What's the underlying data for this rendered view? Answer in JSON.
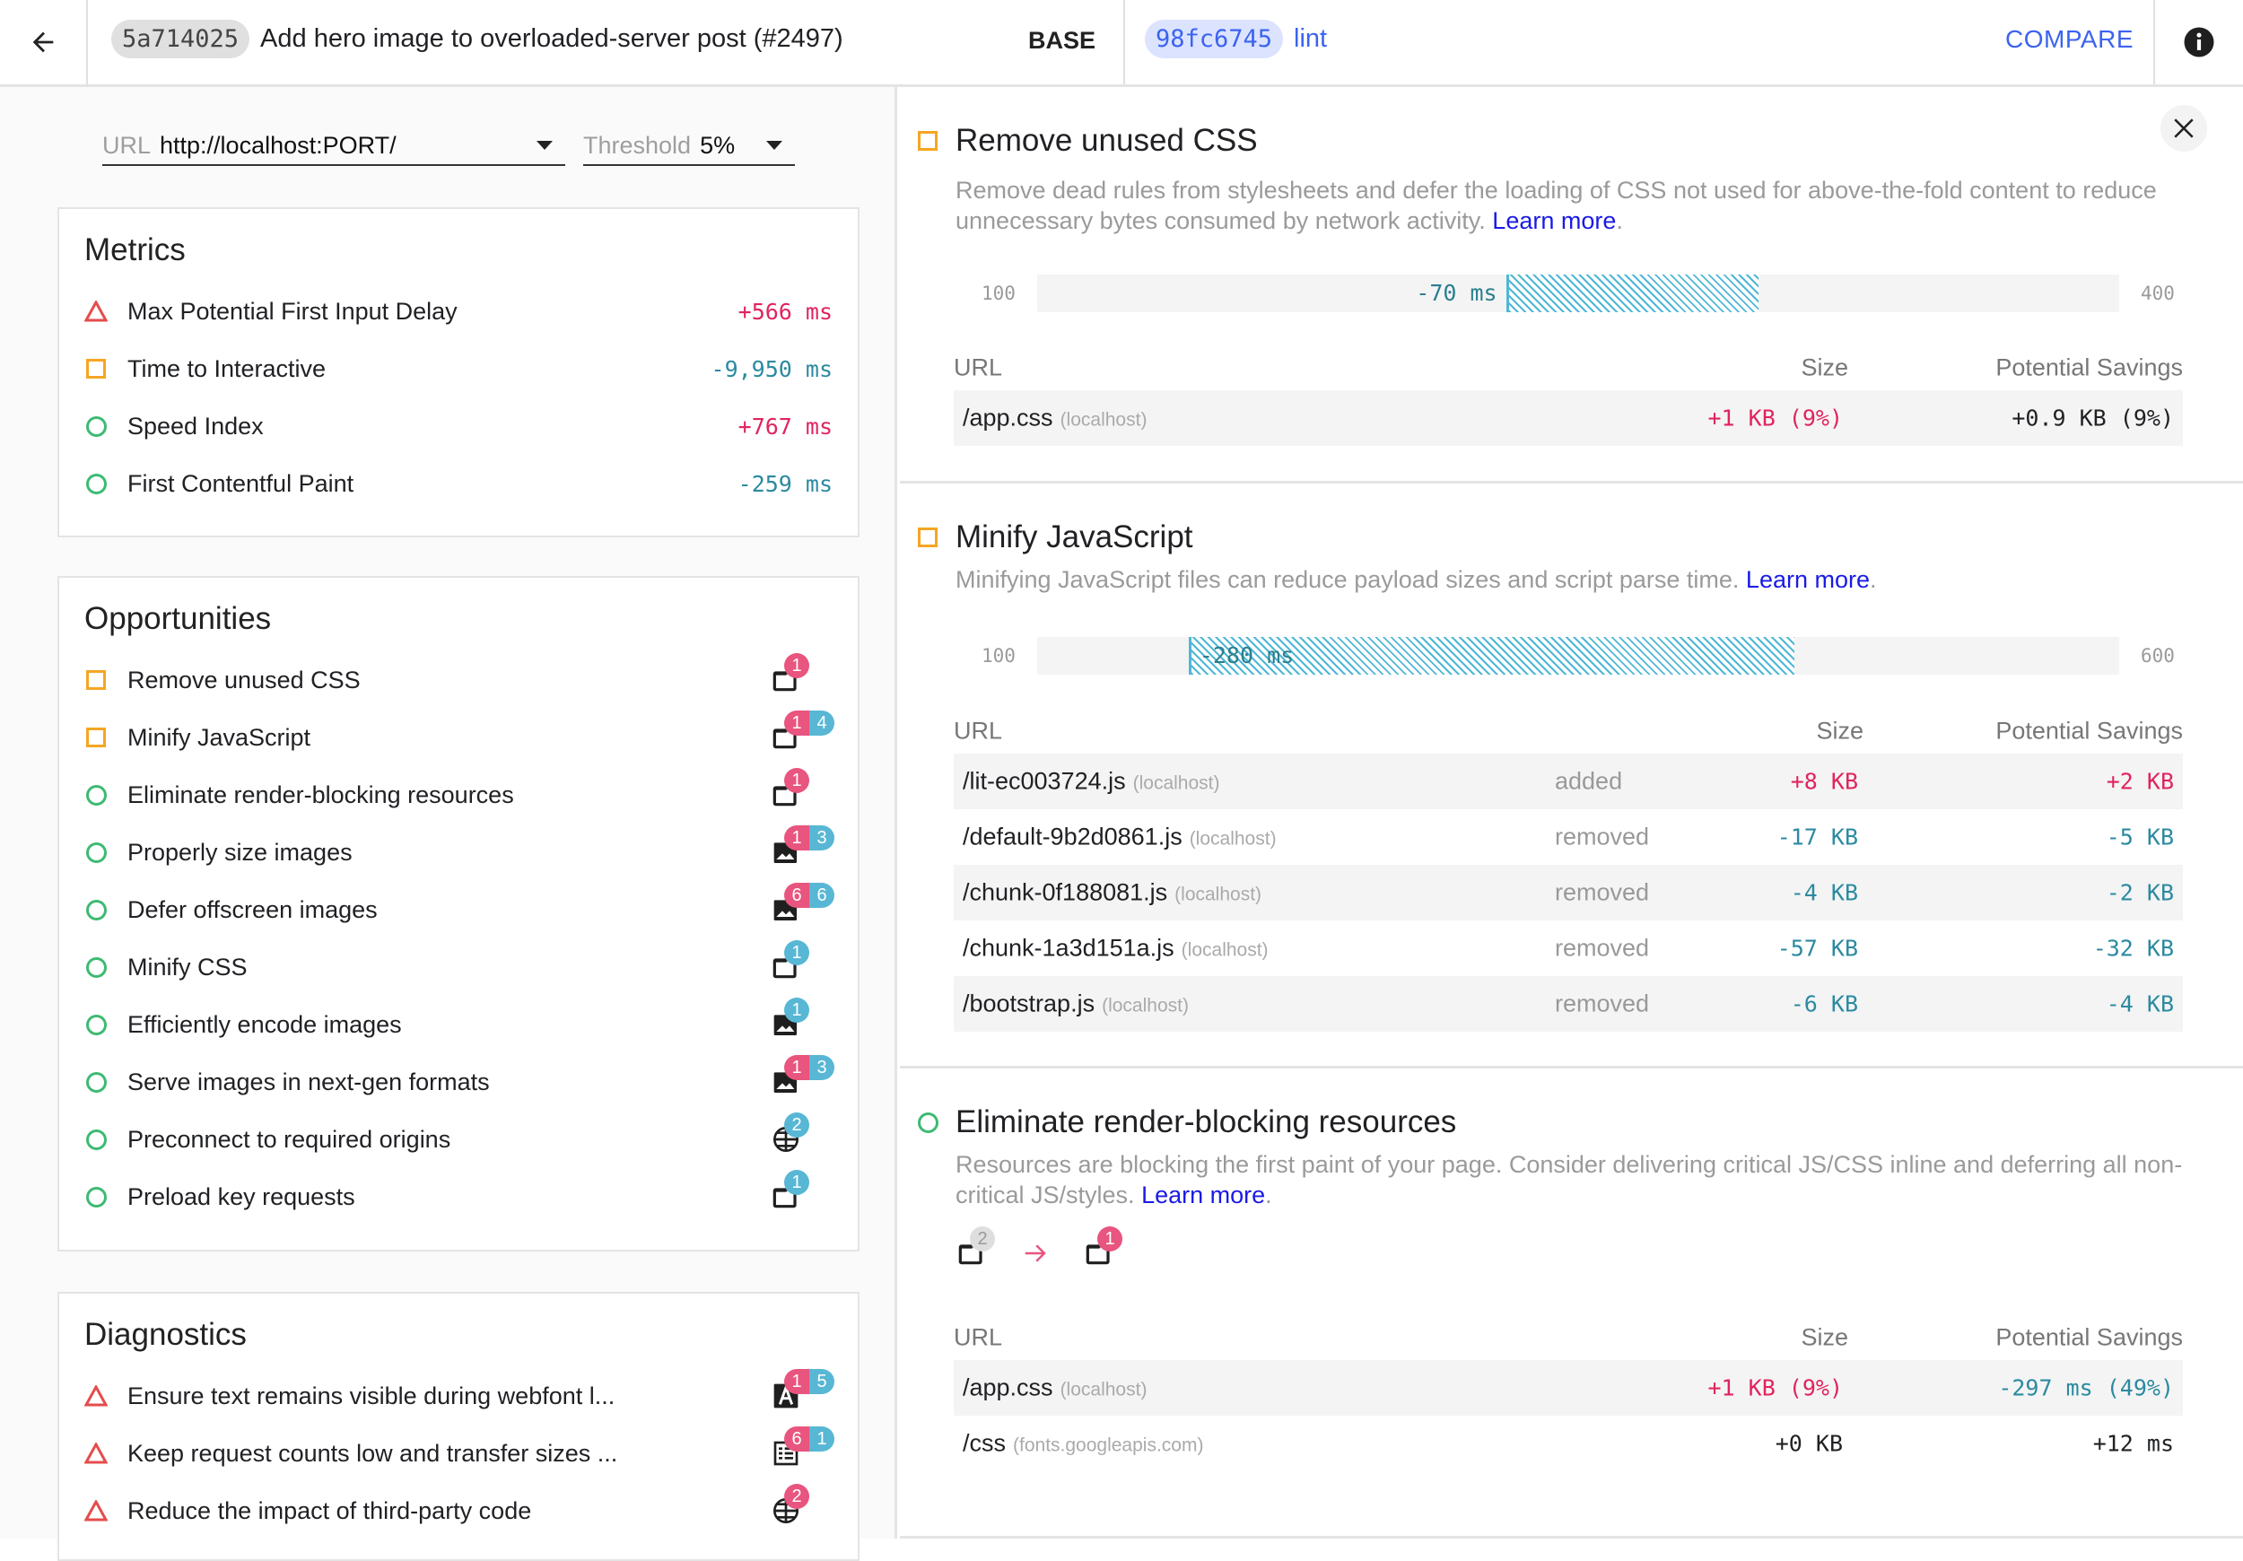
{
  "header": {
    "back_icon": "arrow-left-icon",
    "base_hash": "5a714025",
    "base_title": "Add hero image to overloaded-server post (#2497)",
    "base_label": "BASE",
    "compare_hash": "98fc6745",
    "compare_name": "lint",
    "compare_label": "COMPARE",
    "info_icon": "info-icon"
  },
  "filters": {
    "url_label": "URL",
    "url_value": "http://localhost:PORT/",
    "threshold_label": "Threshold",
    "threshold_value": "5%"
  },
  "colors": {
    "regression": "#e0245e",
    "improvement": "#2b8aa0",
    "badge_red": "#e8557f",
    "badge_blue": "#58b7d4",
    "accent": "#3c63f0",
    "warn": "#f5a623",
    "pass": "#3dba72",
    "fail": "#e54c4c"
  },
  "metrics": {
    "title": "Metrics",
    "items": [
      {
        "status": "fail",
        "name": "Max Potential First Input Delay",
        "value": "+566 ms"
      },
      {
        "status": "average",
        "name": "Time to Interactive",
        "value": "-9,950 ms"
      },
      {
        "status": "pass",
        "name": "Speed Index",
        "value": "+767 ms"
      },
      {
        "status": "pass",
        "name": "First Contentful Paint",
        "value": "-259 ms"
      }
    ]
  },
  "opportunities": {
    "title": "Opportunities",
    "items": [
      {
        "status": "average",
        "name": "Remove unused CSS",
        "icon": "document",
        "added": "1",
        "removed": ""
      },
      {
        "status": "average",
        "name": "Minify JavaScript",
        "icon": "document",
        "added": "1",
        "removed": "4"
      },
      {
        "status": "pass",
        "name": "Eliminate render-blocking resources",
        "icon": "document",
        "added": "1",
        "removed": ""
      },
      {
        "status": "pass",
        "name": "Properly size images",
        "icon": "image",
        "added": "1",
        "removed": "3"
      },
      {
        "status": "pass",
        "name": "Defer offscreen images",
        "icon": "image",
        "added": "6",
        "removed": "6"
      },
      {
        "status": "pass",
        "name": "Minify CSS",
        "icon": "document",
        "added": "",
        "removed": "1"
      },
      {
        "status": "pass",
        "name": "Efficiently encode images",
        "icon": "image",
        "added": "",
        "removed": "1"
      },
      {
        "status": "pass",
        "name": "Serve images in next-gen formats",
        "icon": "image",
        "added": "1",
        "removed": "3"
      },
      {
        "status": "pass",
        "name": "Preconnect to required origins",
        "icon": "globe",
        "added": "",
        "removed": "2"
      },
      {
        "status": "pass",
        "name": "Preload key requests",
        "icon": "document",
        "added": "",
        "removed": "1"
      }
    ]
  },
  "diagnostics": {
    "title": "Diagnostics",
    "items": [
      {
        "status": "fail",
        "name": "Ensure text remains visible during webfont l...",
        "icon": "font",
        "added": "1",
        "removed": "5"
      },
      {
        "status": "fail",
        "name": "Keep request counts low and transfer sizes ...",
        "icon": "list",
        "added": "6",
        "removed": "1"
      },
      {
        "status": "fail",
        "name": "Reduce the impact of third-party code",
        "icon": "globe",
        "added": "2",
        "removed": ""
      }
    ]
  },
  "details": [
    {
      "status": "average",
      "title": "Remove unused CSS",
      "description": "Remove dead rules from stylesheets and defer the loading of CSS not used for above-the-fold content to reduce unnecessary bytes consumed by network activity.",
      "learn_more": "Learn more",
      "bar": {
        "min": 100,
        "max": 400,
        "min_label": "100",
        "max_label": "400",
        "base": 300,
        "compare": 230,
        "label": "-70 ms"
      },
      "columns": [
        "URL",
        "Size",
        "Potential Savings"
      ],
      "rows": [
        {
          "url": "/app.css",
          "host": "(localhost)",
          "status": "",
          "size": "+1 KB (9%)",
          "savings": "+0.9 KB (9%)"
        }
      ]
    },
    {
      "status": "average",
      "title": "Minify JavaScript",
      "description": "Minifying JavaScript files can reduce payload sizes and script parse time.",
      "learn_more": "Learn more",
      "bar": {
        "min": 100,
        "max": 600,
        "min_label": "100",
        "max_label": "600",
        "base": 450,
        "compare": 170,
        "label": "-280 ms"
      },
      "columns": [
        "URL",
        "Size",
        "Potential Savings"
      ],
      "rows": [
        {
          "url": "/lit-ec003724.js",
          "host": "(localhost)",
          "status": "added",
          "size": "+8 KB",
          "savings": "+2 KB"
        },
        {
          "url": "/default-9b2d0861.js",
          "host": "(localhost)",
          "status": "removed",
          "size": "-17 KB",
          "savings": "-5 KB"
        },
        {
          "url": "/chunk-0f188081.js",
          "host": "(localhost)",
          "status": "removed",
          "size": "-4 KB",
          "savings": "-2 KB"
        },
        {
          "url": "/chunk-1a3d151a.js",
          "host": "(localhost)",
          "status": "removed",
          "size": "-57 KB",
          "savings": "-32 KB"
        },
        {
          "url": "/bootstrap.js",
          "host": "(localhost)",
          "status": "removed",
          "size": "-6 KB",
          "savings": "-4 KB"
        }
      ]
    },
    {
      "status": "pass",
      "title": "Eliminate render-blocking resources",
      "description": "Resources are blocking the first paint of your page. Consider delivering critical JS/CSS inline and deferring all non-critical JS/styles.",
      "learn_more": "Learn more",
      "resource_change": {
        "icon": "document",
        "base_count": "2",
        "compare_count": "1"
      },
      "columns": [
        "URL",
        "Size",
        "Potential Savings"
      ],
      "rows": [
        {
          "url": "/app.css",
          "host": "(localhost)",
          "status": "",
          "size": "+1 KB (9%)",
          "savings": "-297 ms (49%)"
        },
        {
          "url": "/css",
          "host": "(fonts.googleapis.com)",
          "status": "",
          "size": "+0 KB",
          "savings": "+12 ms"
        }
      ]
    }
  ]
}
